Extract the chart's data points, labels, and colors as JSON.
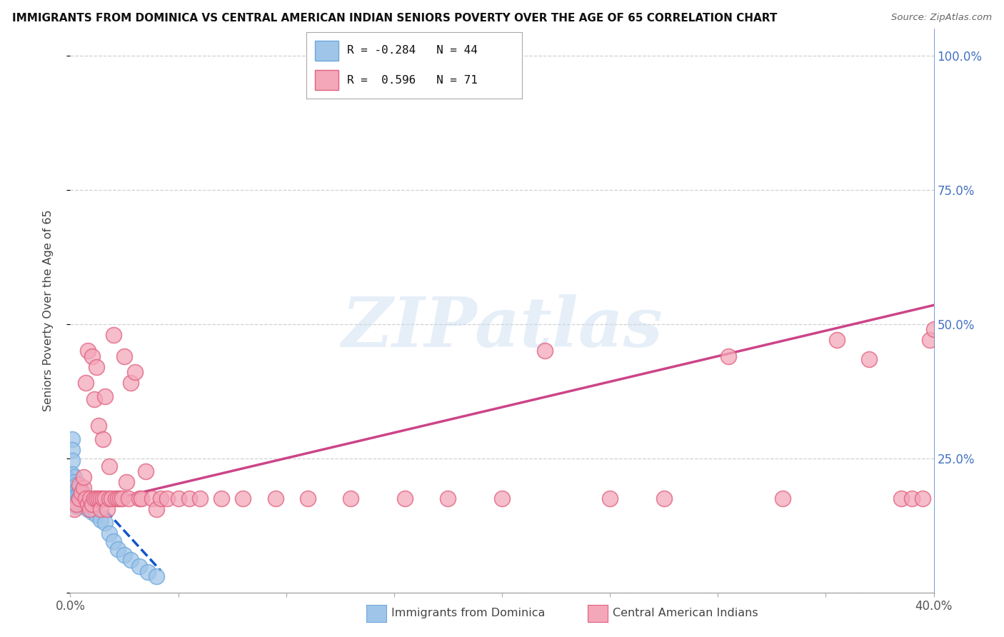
{
  "title": "IMMIGRANTS FROM DOMINICA VS CENTRAL AMERICAN INDIAN SENIORS POVERTY OVER THE AGE OF 65 CORRELATION CHART",
  "source": "Source: ZipAtlas.com",
  "ylabel": "Seniors Poverty Over the Age of 65",
  "xlim": [
    0.0,
    0.4
  ],
  "ylim": [
    0.0,
    1.05
  ],
  "x_ticks": [
    0.0,
    0.05,
    0.1,
    0.15,
    0.2,
    0.25,
    0.3,
    0.35,
    0.4
  ],
  "x_tick_labels": [
    "0.0%",
    "",
    "",
    "",
    "",
    "",
    "",
    "",
    "40.0%"
  ],
  "y_ticks": [
    0.0,
    0.25,
    0.5,
    0.75,
    1.0
  ],
  "y_tick_labels_right": [
    "",
    "25.0%",
    "50.0%",
    "75.0%",
    "100.0%"
  ],
  "legend_label1": "R = -0.284   N = 44",
  "legend_label2": "R =  0.596   N = 71",
  "blue_scatter_x": [
    0.001,
    0.001,
    0.001,
    0.001,
    0.001,
    0.002,
    0.002,
    0.002,
    0.002,
    0.002,
    0.002,
    0.003,
    0.003,
    0.003,
    0.003,
    0.003,
    0.004,
    0.004,
    0.004,
    0.004,
    0.005,
    0.005,
    0.005,
    0.006,
    0.006,
    0.007,
    0.007,
    0.008,
    0.008,
    0.009,
    0.01,
    0.01,
    0.011,
    0.012,
    0.014,
    0.016,
    0.018,
    0.02,
    0.022,
    0.025,
    0.028,
    0.032,
    0.036,
    0.04
  ],
  "blue_scatter_y": [
    0.285,
    0.265,
    0.245,
    0.22,
    0.2,
    0.215,
    0.205,
    0.195,
    0.185,
    0.175,
    0.165,
    0.2,
    0.19,
    0.18,
    0.17,
    0.16,
    0.195,
    0.185,
    0.175,
    0.165,
    0.19,
    0.18,
    0.17,
    0.18,
    0.165,
    0.175,
    0.16,
    0.17,
    0.155,
    0.16,
    0.165,
    0.15,
    0.155,
    0.145,
    0.135,
    0.13,
    0.11,
    0.095,
    0.08,
    0.07,
    0.06,
    0.048,
    0.038,
    0.03
  ],
  "pink_scatter_x": [
    0.002,
    0.003,
    0.004,
    0.004,
    0.005,
    0.006,
    0.006,
    0.007,
    0.007,
    0.008,
    0.008,
    0.009,
    0.009,
    0.01,
    0.01,
    0.011,
    0.011,
    0.012,
    0.012,
    0.013,
    0.013,
    0.014,
    0.014,
    0.015,
    0.015,
    0.016,
    0.016,
    0.017,
    0.018,
    0.018,
    0.019,
    0.02,
    0.021,
    0.022,
    0.023,
    0.024,
    0.025,
    0.026,
    0.027,
    0.028,
    0.03,
    0.032,
    0.033,
    0.035,
    0.038,
    0.04,
    0.042,
    0.045,
    0.05,
    0.055,
    0.06,
    0.07,
    0.08,
    0.095,
    0.11,
    0.13,
    0.155,
    0.175,
    0.2,
    0.22,
    0.25,
    0.275,
    0.305,
    0.33,
    0.355,
    0.37,
    0.385,
    0.39,
    0.395,
    0.398,
    0.4
  ],
  "pink_scatter_y": [
    0.155,
    0.165,
    0.175,
    0.2,
    0.185,
    0.195,
    0.215,
    0.39,
    0.175,
    0.165,
    0.45,
    0.175,
    0.155,
    0.165,
    0.44,
    0.36,
    0.175,
    0.42,
    0.175,
    0.31,
    0.175,
    0.175,
    0.155,
    0.175,
    0.285,
    0.175,
    0.365,
    0.155,
    0.175,
    0.235,
    0.175,
    0.48,
    0.175,
    0.175,
    0.175,
    0.175,
    0.44,
    0.205,
    0.175,
    0.39,
    0.41,
    0.175,
    0.175,
    0.225,
    0.175,
    0.155,
    0.175,
    0.175,
    0.175,
    0.175,
    0.175,
    0.175,
    0.175,
    0.175,
    0.175,
    0.175,
    0.175,
    0.175,
    0.175,
    0.45,
    0.175,
    0.175,
    0.44,
    0.175,
    0.47,
    0.435,
    0.175,
    0.175,
    0.175,
    0.47,
    0.49
  ],
  "blue_line_x": [
    0.0,
    0.042
  ],
  "blue_line_y": [
    0.225,
    0.04
  ],
  "pink_line_x": [
    0.0,
    0.4
  ],
  "pink_line_y": [
    0.155,
    0.535
  ],
  "watermark": "ZIPatlas",
  "bg_color": "#ffffff",
  "grid_color": "#d0d0d0",
  "blue_color": "#9fc5e8",
  "pink_color": "#f4a7b9",
  "blue_edge_color": "#6fa8dc",
  "pink_edge_color": "#e06080",
  "blue_line_color": "#1155cc",
  "pink_line_color": "#cc4488",
  "right_axis_color": "#4472c4",
  "legend_box_color": "#aaaaaa"
}
